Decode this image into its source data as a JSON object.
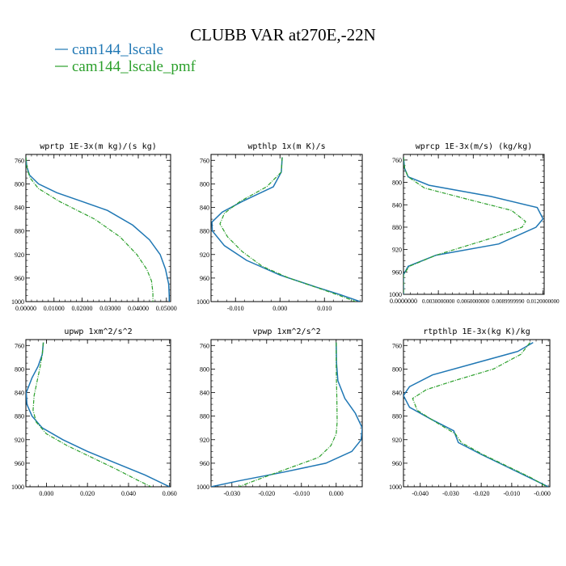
{
  "figure": {
    "title": "CLUBB VAR at270E,-22N",
    "legend": [
      {
        "label": "cam144_lscale",
        "color": "#1f77b4"
      },
      {
        "label": "cam144_lscale_pmf",
        "color": "#2ca02c"
      }
    ]
  },
  "chart_data": [
    {
      "type": "line",
      "title": "wprtp  1E-3x(m kg)/(s kg)",
      "xlim": [
        0,
        0.0515
      ],
      "ylim": [
        1000,
        750
      ],
      "xticks": [
        0,
        0.01,
        0.02,
        0.03,
        0.04,
        0.05
      ],
      "xtick_labels": [
        "0.00000",
        "0.01000",
        "0.02000",
        "0.03000",
        "0.04000",
        "0.05000"
      ],
      "yticks": [
        760,
        800,
        840,
        880,
        920,
        960,
        1000
      ],
      "ytick_labels": [
        "760",
        "800",
        "840",
        "880",
        "920",
        "960",
        "1000"
      ],
      "series": [
        {
          "name": "cam144_lscale",
          "color": "#1f77b4",
          "x": [
            0.0,
            0.0003,
            0.0013,
            0.0045,
            0.011,
            0.02,
            0.029,
            0.038,
            0.044,
            0.0478,
            0.0497,
            0.0508,
            0.051,
            0.051
          ],
          "y": [
            755,
            770,
            785,
            800,
            815,
            830,
            845,
            870,
            895,
            920,
            945,
            970,
            990,
            1000
          ]
        },
        {
          "name": "cam144_lscale_pmf",
          "color": "#2ca02c",
          "x": [
            0.0,
            0.0005,
            0.0015,
            0.0045,
            0.012,
            0.0245,
            0.0335,
            0.0395,
            0.043,
            0.0447,
            0.0452,
            0.0452
          ],
          "y": [
            755,
            775,
            790,
            808,
            830,
            860,
            890,
            920,
            945,
            965,
            985,
            1000
          ]
        }
      ]
    },
    {
      "type": "line",
      "title": "wpthlp  1x(m K)/s",
      "xlim": [
        -0.0155,
        0.0185
      ],
      "ylim": [
        1000,
        750
      ],
      "xticks": [
        -0.01,
        0.0,
        0.01
      ],
      "xtick_labels": [
        "-0.010",
        "0.000",
        "0.010"
      ],
      "yticks": [
        760,
        800,
        840,
        880,
        920,
        960,
        1000
      ],
      "ytick_labels": [
        "760",
        "800",
        "840",
        "880",
        "920",
        "960",
        "1000"
      ],
      "series": [
        {
          "name": "cam144_lscale",
          "color": "#1f77b4",
          "x": [
            0.0005,
            0.0003,
            -0.0015,
            -0.0085,
            -0.013,
            -0.0153,
            -0.0152,
            -0.0125,
            -0.0075,
            0.0,
            0.008,
            0.0135,
            0.018
          ],
          "y": [
            755,
            780,
            805,
            830,
            848,
            865,
            880,
            905,
            930,
            955,
            975,
            988,
            1000
          ]
        },
        {
          "name": "cam144_lscale_pmf",
          "color": "#2ca02c",
          "x": [
            0.0005,
            0.0003,
            -0.003,
            -0.009,
            -0.0125,
            -0.0135,
            -0.0118,
            -0.0085,
            -0.004,
            0.002,
            0.009,
            0.0135,
            0.017
          ],
          "y": [
            755,
            780,
            805,
            830,
            850,
            868,
            890,
            915,
            940,
            960,
            978,
            990,
            1000
          ]
        }
      ]
    },
    {
      "type": "line",
      "title": "wprcp  1E-3x(m/s) (kg/kg)",
      "xlim": [
        0,
        0.0121
      ],
      "ylim": [
        1000,
        750
      ],
      "xticks": [
        0,
        0.003,
        0.006,
        0.009,
        0.012
      ],
      "xtick_labels": [
        "0.0000000",
        "0.0030000000",
        "0.0060000000",
        "0.0089999990",
        "0.0120000000"
      ],
      "yticks": [
        760,
        800,
        840,
        880,
        920,
        960,
        1000
      ],
      "ytick_labels": [
        "760",
        "800",
        "840",
        "880",
        "920",
        "960",
        "1000"
      ],
      "series": [
        {
          "name": "cam144_lscale",
          "color": "#1f77b4",
          "x": [
            0.0,
            0.0001,
            0.0004,
            0.0022,
            0.0075,
            0.0115,
            0.012,
            0.0114,
            0.0082,
            0.0028,
            0.0004,
            0.0,
            0.0
          ],
          "y": [
            755,
            775,
            790,
            805,
            825,
            845,
            865,
            880,
            910,
            930,
            950,
            965,
            1000
          ]
        },
        {
          "name": "cam144_lscale_pmf",
          "color": "#2ca02c",
          "x": [
            0.0,
            0.0001,
            0.0004,
            0.0018,
            0.0055,
            0.0093,
            0.0105,
            0.0102,
            0.0075,
            0.0028,
            0.0005,
            0.0,
            0.0
          ],
          "y": [
            755,
            775,
            790,
            810,
            830,
            850,
            870,
            880,
            900,
            930,
            950,
            965,
            1000
          ]
        }
      ]
    },
    {
      "type": "line",
      "title": "upwp  1xm^2/s^2",
      "xlim": [
        -0.01,
        0.0605
      ],
      "ylim": [
        1000,
        750
      ],
      "xticks": [
        0.0,
        0.02,
        0.04,
        0.06
      ],
      "xtick_labels": [
        "0.000",
        "0.020",
        "0.040",
        "0.060"
      ],
      "yticks": [
        760,
        800,
        840,
        880,
        920,
        960,
        1000
      ],
      "ytick_labels": [
        "760",
        "800",
        "840",
        "880",
        "920",
        "960",
        "1000"
      ],
      "series": [
        {
          "name": "cam144_lscale",
          "color": "#1f77b4",
          "x": [
            -0.0015,
            -0.002,
            -0.004,
            -0.007,
            -0.0098,
            -0.0095,
            -0.007,
            -0.002,
            0.008,
            0.02,
            0.034,
            0.048,
            0.06
          ],
          "y": [
            755,
            775,
            795,
            815,
            840,
            860,
            880,
            900,
            920,
            940,
            960,
            980,
            1000
          ]
        },
        {
          "name": "cam144_lscale_pmf",
          "color": "#2ca02c",
          "x": [
            -0.0015,
            -0.002,
            -0.003,
            -0.0045,
            -0.006,
            -0.0065,
            -0.005,
            0.0,
            0.01,
            0.022,
            0.034,
            0.044,
            0.051
          ],
          "y": [
            755,
            775,
            795,
            820,
            845,
            870,
            890,
            910,
            930,
            950,
            970,
            988,
            1000
          ]
        }
      ]
    },
    {
      "type": "line",
      "title": "vpwp  1xm^2/s^2",
      "xlim": [
        -0.036,
        0.0075
      ],
      "ylim": [
        1000,
        750
      ],
      "xticks": [
        -0.03,
        -0.02,
        -0.01,
        0.0
      ],
      "xtick_labels": [
        "-0.030",
        "-0.020",
        "-0.010",
        "0.000"
      ],
      "yticks": [
        760,
        800,
        840,
        880,
        920,
        960,
        1000
      ],
      "ytick_labels": [
        "760",
        "800",
        "840",
        "880",
        "920",
        "960",
        "1000"
      ],
      "series": [
        {
          "name": "cam144_lscale",
          "color": "#1f77b4",
          "x": [
            0.0,
            0.0001,
            0.0005,
            0.0025,
            0.0055,
            0.0075,
            0.0072,
            0.0045,
            -0.003,
            -0.015,
            -0.028,
            -0.036
          ],
          "y": [
            755,
            790,
            820,
            850,
            875,
            900,
            920,
            940,
            960,
            975,
            990,
            1000
          ]
        },
        {
          "name": "cam144_lscale_pmf",
          "color": "#2ca02c",
          "x": [
            0.0,
            0.0,
            0.0002,
            0.0003,
            0.0,
            -0.0015,
            -0.005,
            -0.012,
            -0.019,
            -0.0245,
            -0.028
          ],
          "y": [
            755,
            800,
            850,
            890,
            910,
            930,
            950,
            965,
            980,
            992,
            1000
          ]
        }
      ]
    },
    {
      "type": "line",
      "title": "rtpthlp  1E-3x(kg K)/kg",
      "xlim": [
        -0.0455,
        0.0025
      ],
      "ylim": [
        1000,
        750
      ],
      "xticks": [
        -0.04,
        -0.03,
        -0.02,
        -0.01,
        0.0
      ],
      "xtick_labels": [
        "-0.040",
        "-0.030",
        "-0.020",
        "-0.010",
        "-0.000"
      ],
      "yticks": [
        760,
        800,
        840,
        880,
        920,
        960,
        1000
      ],
      "ytick_labels": [
        "760",
        "800",
        "840",
        "880",
        "920",
        "960",
        "1000"
      ],
      "series": [
        {
          "name": "cam144_lscale",
          "color": "#1f77b4",
          "x": [
            -0.003,
            -0.008,
            -0.022,
            -0.036,
            -0.0435,
            -0.0455,
            -0.0435,
            -0.0365,
            -0.029,
            -0.0275,
            -0.02,
            -0.012,
            -0.004,
            0.002
          ],
          "y": [
            755,
            770,
            790,
            810,
            830,
            845,
            865,
            885,
            905,
            925,
            945,
            965,
            985,
            1000
          ]
        },
        {
          "name": "cam144_lscale_pmf",
          "color": "#2ca02c",
          "x": [
            -0.004,
            -0.007,
            -0.016,
            -0.029,
            -0.038,
            -0.0425,
            -0.041,
            -0.035,
            -0.0285,
            -0.0265,
            -0.0195,
            -0.0115,
            -0.0035,
            0.0015
          ],
          "y": [
            755,
            775,
            800,
            820,
            835,
            850,
            870,
            890,
            910,
            925,
            945,
            965,
            985,
            1000
          ]
        }
      ]
    }
  ]
}
